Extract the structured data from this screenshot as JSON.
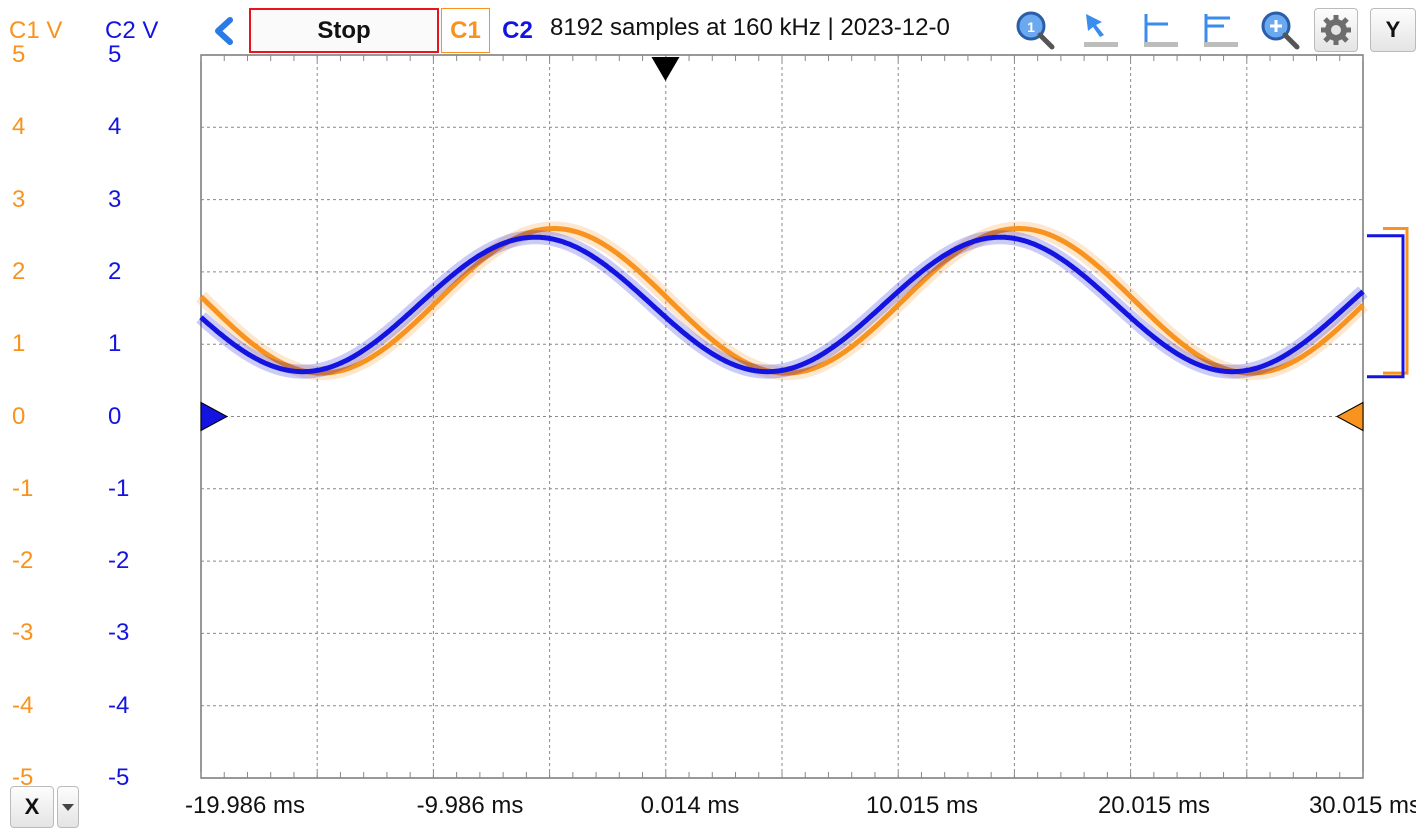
{
  "toolbar": {
    "stop_label": "Stop",
    "c1_label": "C1",
    "c2_label": "C2",
    "info": "8192 samples at 160 kHz | 2023-12-0",
    "y_label": "Y",
    "icons": [
      "back-arrow-icon",
      "zoom-reset-icon",
      "pointer-icon",
      "trigger-level-icon",
      "trigger-level-2-icon",
      "zoom-in-icon",
      "gear-icon"
    ]
  },
  "y_axes": {
    "c1_title": "C1 V",
    "c2_title": "C2 V",
    "ticks": [
      "5",
      "4",
      "3",
      "2",
      "1",
      "0",
      "-1",
      "-2",
      "-3",
      "-4",
      "-5"
    ]
  },
  "x_axis": {
    "ticks": [
      "-19.986 ms",
      "-9.986 ms",
      "0.014 ms",
      "10.015 ms",
      "20.015 ms",
      "30.015 ms"
    ],
    "menu_label": "X"
  },
  "colors": {
    "c1": "#f7931e",
    "c2": "#1414e0",
    "grid": "#8a8a8a",
    "stop_border": "#e8141b"
  },
  "chart_data": {
    "type": "line",
    "xlim_ms": [
      -19.986,
      30.015
    ],
    "ylim_v": [
      -5,
      5
    ],
    "grid": true,
    "series": [
      {
        "name": "C1",
        "color": "#f7931e",
        "offset_v": 1.6,
        "amplitude_v": 1.0,
        "period_ms": 20,
        "phase_peak_ms": -4.8
      },
      {
        "name": "C2",
        "color": "#1414e0",
        "offset_v": 1.55,
        "amplitude_v": 0.93,
        "period_ms": 20,
        "phase_peak_ms": -5.6
      }
    ]
  }
}
